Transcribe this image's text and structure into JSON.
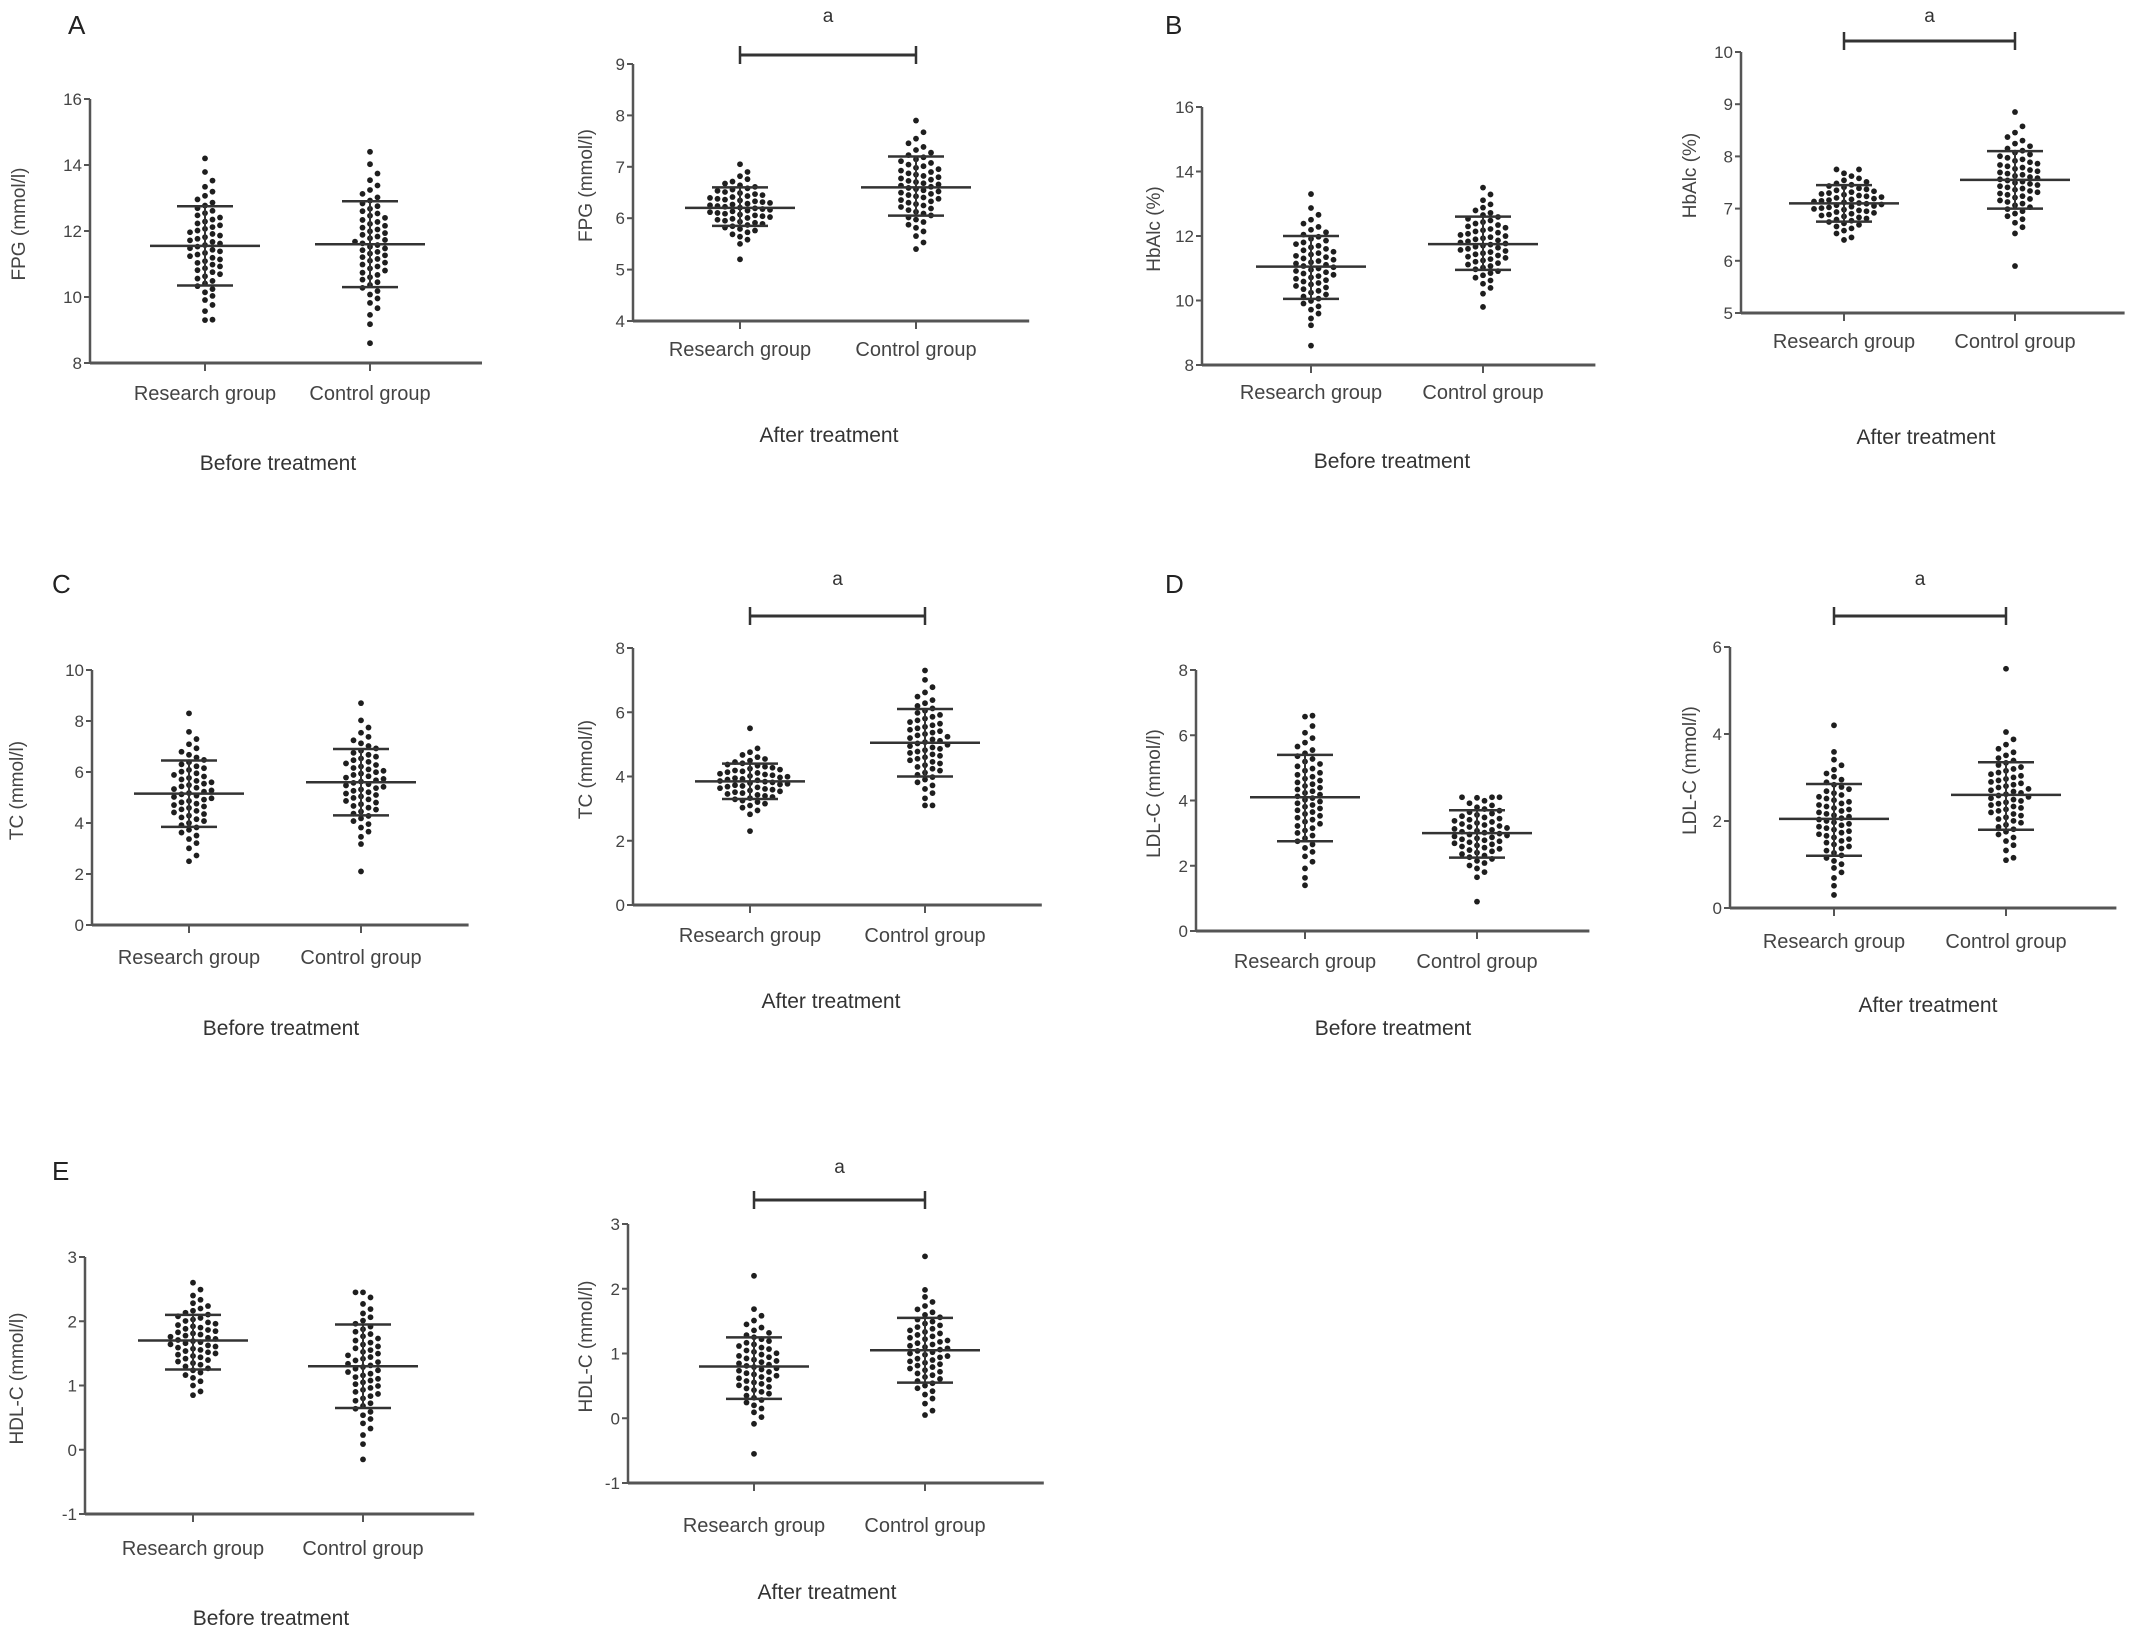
{
  "chart_data": [
    {
      "type": "scatter",
      "panel": "A",
      "subtitle": "Before treatment",
      "ylabel": "FPG (mmol/l)",
      "ylim": [
        8,
        16
      ],
      "yticks": [
        8,
        10,
        12,
        14,
        16
      ],
      "sig_label": null,
      "groups": [
        {
          "name": "Research group",
          "mean": 11.55,
          "sd_low": 10.35,
          "sd_high": 12.75,
          "min": 9.3,
          "max": 14.2
        },
        {
          "name": "Control group",
          "mean": 11.6,
          "sd_low": 10.3,
          "sd_high": 12.9,
          "min": 8.6,
          "max": 14.4
        }
      ]
    },
    {
      "type": "scatter",
      "panel": "",
      "subtitle": "After treatment",
      "ylabel": "FPG (mmol/l)",
      "ylim": [
        4,
        9
      ],
      "yticks": [
        4,
        5,
        6,
        7,
        8,
        9
      ],
      "sig_label": "a",
      "groups": [
        {
          "name": "Research group",
          "mean": 6.2,
          "sd_low": 5.85,
          "sd_high": 6.6,
          "min": 5.2,
          "max": 7.05
        },
        {
          "name": "Control group",
          "mean": 6.6,
          "sd_low": 6.05,
          "sd_high": 7.2,
          "min": 5.4,
          "max": 7.9
        }
      ]
    },
    {
      "type": "scatter",
      "panel": "B",
      "subtitle": "Before treatment",
      "ylabel": "HbAlc (%)",
      "ylim": [
        8,
        16
      ],
      "yticks": [
        8,
        10,
        12,
        14,
        16
      ],
      "sig_label": null,
      "groups": [
        {
          "name": "Research group",
          "mean": 11.05,
          "sd_low": 10.05,
          "sd_high": 12.0,
          "min": 8.6,
          "max": 13.3
        },
        {
          "name": "Control group",
          "mean": 11.75,
          "sd_low": 10.95,
          "sd_high": 12.6,
          "min": 9.8,
          "max": 13.5
        }
      ]
    },
    {
      "type": "scatter",
      "panel": "",
      "subtitle": "After treatment",
      "ylabel": "HbAlc (%)",
      "ylim": [
        5,
        10
      ],
      "yticks": [
        5,
        6,
        7,
        8,
        9,
        10
      ],
      "sig_label": "a",
      "groups": [
        {
          "name": "Research group",
          "mean": 7.1,
          "sd_low": 6.75,
          "sd_high": 7.45,
          "min": 6.4,
          "max": 7.75
        },
        {
          "name": "Control group",
          "mean": 7.55,
          "sd_low": 7.0,
          "sd_high": 8.1,
          "min": 5.9,
          "max": 8.85
        }
      ]
    },
    {
      "type": "scatter",
      "panel": "C",
      "subtitle": "Before treatment",
      "ylabel": "TC (mmol/l)",
      "ylim": [
        0,
        10
      ],
      "yticks": [
        0,
        2,
        4,
        6,
        8,
        10
      ],
      "sig_label": null,
      "groups": [
        {
          "name": "Research group",
          "mean": 5.15,
          "sd_low": 3.85,
          "sd_high": 6.45,
          "min": 2.5,
          "max": 8.3
        },
        {
          "name": "Control group",
          "mean": 5.6,
          "sd_low": 4.3,
          "sd_high": 6.9,
          "min": 2.1,
          "max": 8.7
        }
      ]
    },
    {
      "type": "scatter",
      "panel": "",
      "subtitle": "After treatment",
      "ylabel": "TC (mmol/l)",
      "ylim": [
        0,
        8
      ],
      "yticks": [
        0,
        2,
        4,
        6,
        8
      ],
      "sig_label": "a",
      "groups": [
        {
          "name": "Research group",
          "mean": 3.85,
          "sd_low": 3.3,
          "sd_high": 4.4,
          "min": 2.3,
          "max": 5.5
        },
        {
          "name": "Control group",
          "mean": 5.05,
          "sd_low": 4.0,
          "sd_high": 6.1,
          "min": 3.1,
          "max": 7.3
        }
      ]
    },
    {
      "type": "scatter",
      "panel": "D",
      "subtitle": "Before treatment",
      "ylabel": "LDL-C (mmol/l)",
      "ylim": [
        0,
        8
      ],
      "yticks": [
        0,
        2,
        4,
        6,
        8
      ],
      "sig_label": null,
      "groups": [
        {
          "name": "Research group",
          "mean": 4.1,
          "sd_low": 2.75,
          "sd_high": 5.4,
          "min": 1.4,
          "max": 6.6
        },
        {
          "name": "Control group",
          "mean": 3.0,
          "sd_low": 2.25,
          "sd_high": 3.7,
          "min": 0.9,
          "max": 4.1
        }
      ]
    },
    {
      "type": "scatter",
      "panel": "",
      "subtitle": "After treatment",
      "ylabel": "LDL-C (mmol/l)",
      "ylim": [
        0,
        6
      ],
      "yticks": [
        0,
        2,
        4,
        6
      ],
      "sig_label": "a",
      "groups": [
        {
          "name": "Research group",
          "mean": 2.05,
          "sd_low": 1.2,
          "sd_high": 2.85,
          "min": 0.3,
          "max": 4.2
        },
        {
          "name": "Control group",
          "mean": 2.6,
          "sd_low": 1.8,
          "sd_high": 3.35,
          "min": 1.1,
          "max": 5.5
        }
      ]
    },
    {
      "type": "scatter",
      "panel": "E",
      "subtitle": "Before treatment",
      "ylabel": "HDL-C (mmol/l)",
      "ylim": [
        -1,
        3
      ],
      "yticks": [
        -1,
        0,
        1,
        2,
        3
      ],
      "sig_label": null,
      "groups": [
        {
          "name": "Research group",
          "mean": 1.7,
          "sd_low": 1.25,
          "sd_high": 2.1,
          "min": 0.85,
          "max": 2.6
        },
        {
          "name": "Control group",
          "mean": 1.3,
          "sd_low": 0.65,
          "sd_high": 1.95,
          "min": -0.15,
          "max": 2.45
        }
      ]
    },
    {
      "type": "scatter",
      "panel": "",
      "subtitle": "After treatment",
      "ylabel": "HDL-C (mmol/l)",
      "ylim": [
        -1,
        3
      ],
      "yticks": [
        -1,
        0,
        1,
        2,
        3
      ],
      "sig_label": "a",
      "groups": [
        {
          "name": "Research group",
          "mean": 0.8,
          "sd_low": 0.3,
          "sd_high": 1.25,
          "min": -0.55,
          "max": 2.2
        },
        {
          "name": "Control group",
          "mean": 1.05,
          "sd_low": 0.55,
          "sd_high": 1.55,
          "min": 0.05,
          "max": 2.5
        }
      ]
    }
  ],
  "colors": {
    "dots": "#1e1e1e",
    "axis": "#555555",
    "lines": "#333333"
  }
}
